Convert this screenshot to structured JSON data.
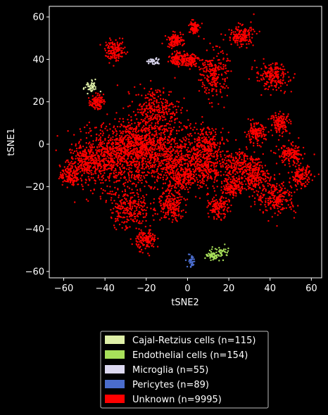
{
  "chart_data": {
    "type": "scatter",
    "xlabel": "tSNE2",
    "ylabel": "tSNE1",
    "xlim": [
      -67,
      65
    ],
    "ylim": [
      -63,
      65
    ],
    "xticks": [
      -60,
      -40,
      -20,
      0,
      20,
      40,
      60
    ],
    "yticks": [
      -60,
      -40,
      -20,
      0,
      20,
      40,
      60
    ],
    "xtick_labels": [
      "−60",
      "−40",
      "−20",
      "0",
      "20",
      "40",
      "60"
    ],
    "ytick_labels": [
      "−60",
      "−40",
      "−20",
      "0",
      "20",
      "40",
      "60"
    ],
    "background": "#000000",
    "legend_position": "below",
    "series": [
      {
        "name": "Cajal-Retzius cells (n=115)",
        "color": "#dff0a8",
        "clusters": [
          [
            -47,
            27,
            2,
            2
          ]
        ]
      },
      {
        "name": "Endothelial cells (n=154)",
        "color": "#a8e05a",
        "clusters": [
          [
            16,
            -51,
            3,
            2
          ],
          [
            12,
            -53,
            2,
            1
          ]
        ]
      },
      {
        "name": "Microglia (n=55)",
        "color": "#dcd8f0",
        "clusters": [
          [
            -17,
            39,
            2,
            1
          ]
        ]
      },
      {
        "name": "Pericytes (n=89)",
        "color": "#4a6ccc",
        "clusters": [
          [
            2,
            -55,
            1.2,
            2
          ]
        ]
      },
      {
        "name": "Unknown (n=9995)",
        "color": "#ff0000",
        "clusters": [
          [
            -22,
            -5,
            18,
            11
          ],
          [
            -12,
            -5,
            12,
            9
          ],
          [
            -38,
            -8,
            10,
            8
          ],
          [
            -28,
            0,
            10,
            7
          ],
          [
            -15,
            16,
            7,
            7
          ],
          [
            -50,
            -8,
            5,
            5
          ],
          [
            -57,
            -15,
            3,
            3
          ],
          [
            -28,
            -30,
            6,
            6
          ],
          [
            -20,
            -45,
            3,
            3
          ],
          [
            -8,
            -30,
            4,
            4
          ],
          [
            -3,
            -15,
            5,
            6
          ],
          [
            8,
            -12,
            6,
            6
          ],
          [
            15,
            -30,
            3,
            3
          ],
          [
            10,
            0,
            5,
            5
          ],
          [
            25,
            -10,
            6,
            5
          ],
          [
            33,
            5,
            3,
            3
          ],
          [
            45,
            10,
            3,
            3
          ],
          [
            43,
            -25,
            6,
            5
          ],
          [
            55,
            -15,
            3,
            3
          ],
          [
            50,
            -5,
            4,
            3
          ],
          [
            33,
            -15,
            4,
            4
          ],
          [
            -35,
            44,
            3,
            3
          ],
          [
            -6,
            49,
            2.5,
            2
          ],
          [
            1,
            40,
            3,
            2
          ],
          [
            3,
            55,
            1.5,
            2
          ],
          [
            13,
            33,
            4,
            7
          ],
          [
            26,
            51,
            4,
            3
          ],
          [
            41,
            32,
            5,
            4
          ],
          [
            -44,
            20,
            2,
            2
          ],
          [
            22,
            -20,
            3,
            3
          ],
          [
            -5,
            40,
            2,
            2
          ]
        ]
      }
    ]
  },
  "legend": {
    "items": [
      {
        "label": "Cajal-Retzius cells (n=115)",
        "color": "#dff0a8"
      },
      {
        "label": "Endothelial cells (n=154)",
        "color": "#a8e05a"
      },
      {
        "label": "Microglia (n=55)",
        "color": "#dcd8f0"
      },
      {
        "label": "Pericytes (n=89)",
        "color": "#4a6ccc"
      },
      {
        "label": "Unknown (n=9995)",
        "color": "#ff0000"
      }
    ]
  }
}
